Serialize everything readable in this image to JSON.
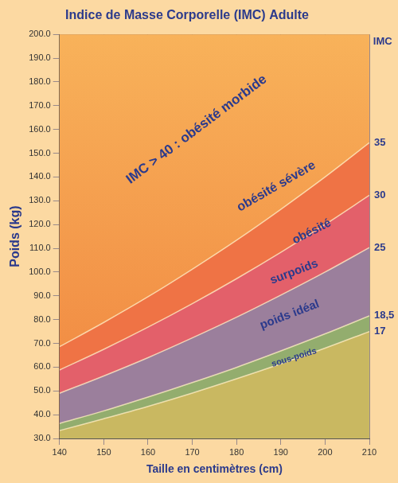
{
  "chart_data": {
    "type": "area",
    "title": "Indice de Masse Corporelle (IMC) Adulte",
    "x_label": "Taille en centimètres (cm)",
    "y_label": "Poids (kg)",
    "x": [
      140,
      150,
      160,
      170,
      180,
      190,
      200,
      210
    ],
    "series": [
      {
        "name": "17",
        "color": "#c9b861",
        "values": [
          33.3,
          38.3,
          43.5,
          49.1,
          55.1,
          61.4,
          68.0,
          75.0
        ]
      },
      {
        "name": "18,5",
        "color": "#93ad6e",
        "values": [
          36.3,
          41.6,
          47.4,
          53.5,
          59.9,
          66.8,
          74.0,
          81.6
        ]
      },
      {
        "name": "25",
        "color": "#9b7f9c",
        "values": [
          49.0,
          56.3,
          64.0,
          72.3,
          81.0,
          90.3,
          100.0,
          110.3
        ]
      },
      {
        "name": "30",
        "color": "#e3606a",
        "values": [
          58.8,
          67.5,
          76.8,
          86.7,
          97.2,
          108.3,
          120.0,
          132.3
        ]
      },
      {
        "name": "35",
        "color": "#ef7345",
        "values": [
          68.6,
          78.8,
          89.6,
          101.2,
          113.4,
          126.4,
          140.0,
          154.4
        ]
      }
    ],
    "xlim": [
      140,
      210
    ],
    "xticks": [
      140,
      150,
      160,
      170,
      180,
      190,
      200,
      210
    ],
    "ylim": [
      30,
      200
    ],
    "yticks": [
      {
        "value": 30,
        "label": "30.0"
      },
      {
        "value": 40,
        "label": "40.0"
      },
      {
        "value": 50,
        "label": "50.0"
      },
      {
        "value": 60,
        "label": "60.0"
      },
      {
        "value": 70,
        "label": "70.0"
      },
      {
        "value": 80,
        "label": "80.0"
      },
      {
        "value": 90,
        "label": "90.0"
      },
      {
        "value": 100,
        "label": "100.0"
      },
      {
        "value": 110,
        "label": "110.0"
      },
      {
        "value": 120,
        "label": "120.0"
      },
      {
        "value": 130,
        "label": "130.0"
      },
      {
        "value": 140,
        "label": "140.0"
      },
      {
        "value": 150,
        "label": "150.0"
      },
      {
        "value": 160,
        "label": "160.0"
      },
      {
        "value": 170,
        "label": "170.0"
      },
      {
        "value": 180,
        "label": "180.0"
      },
      {
        "value": 190,
        "label": "190.0"
      },
      {
        "value": 200,
        "label": "200.0"
      }
    ],
    "grid": true,
    "annotations": [
      {
        "text": "IMC > 40 : obésité morbide",
        "x": 171,
        "y": 160
      },
      {
        "text": "obésité sévère",
        "x": 189,
        "y": 136
      },
      {
        "text": "obésité",
        "x": 197,
        "y": 117
      },
      {
        "text": "surpoids",
        "x": 193,
        "y": 100
      },
      {
        "text": "poids idéal",
        "x": 192,
        "y": 82
      },
      {
        "text": "sous-poids",
        "x": 193,
        "y": 64
      },
      {
        "text": "IMC",
        "x": 213,
        "y": 197
      }
    ]
  }
}
